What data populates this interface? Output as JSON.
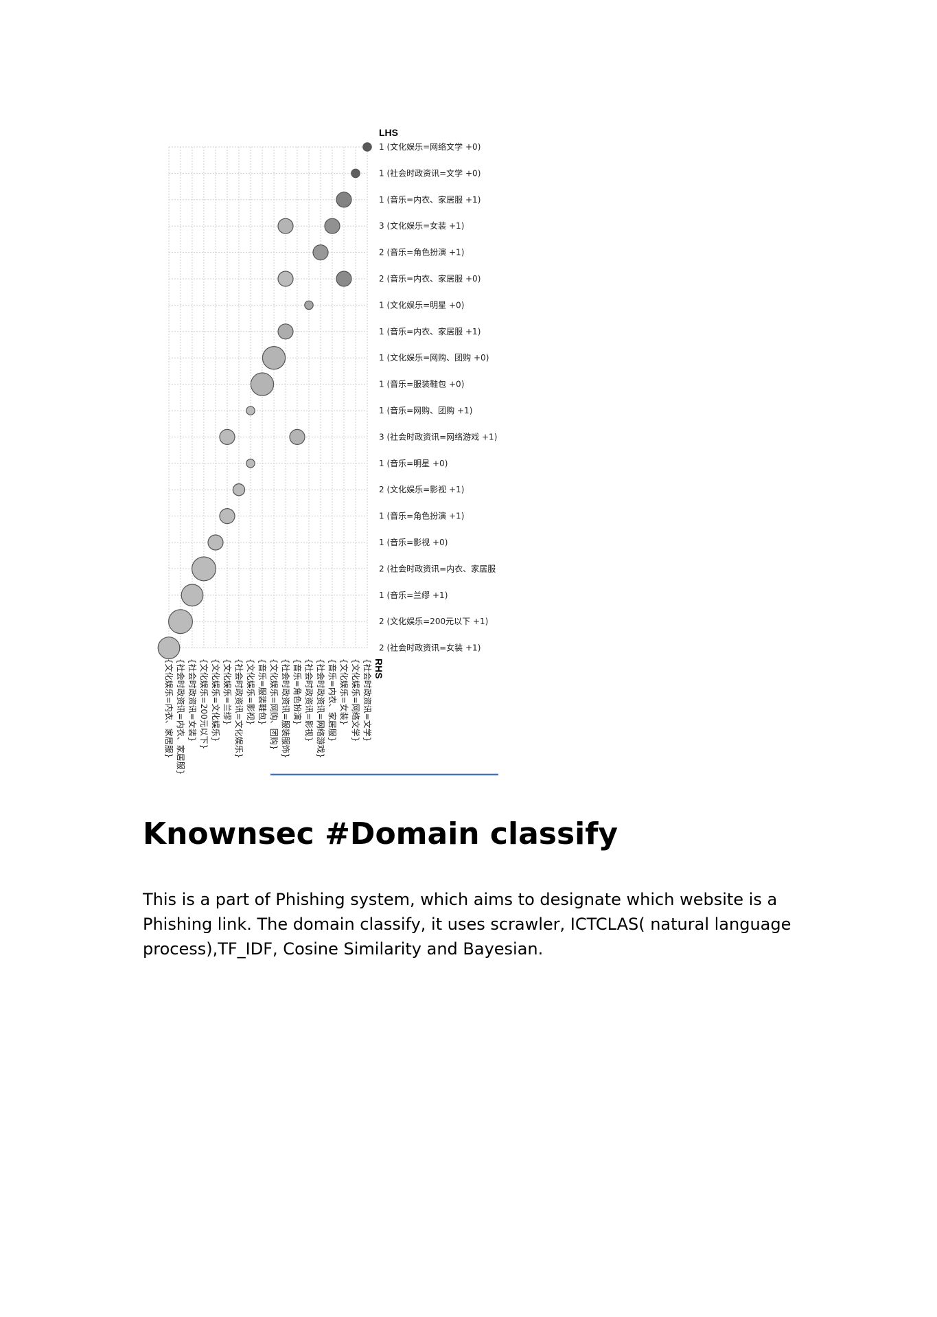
{
  "chart_data": {
    "type": "scatter",
    "title": "",
    "lhs_label": "LHS",
    "rhs_label": "RHS",
    "lhs": [
      "1 (文化娱乐=网络文学 +0)",
      "1 (社会时政资讯=文学 +0)",
      "1 (音乐=内衣、家居服 +1)",
      "3 (文化娱乐=女装 +1)",
      "2 (音乐=角色扮演 +1)",
      "2 (音乐=内衣、家居服 +0)",
      "1 (文化娱乐=明星 +0)",
      "1 (音乐=内衣、家居服 +1)",
      "1 (文化娱乐=网购、团购 +0)",
      "1 (音乐=服装鞋包 +0)",
      "1 (音乐=网购、团购 +1)",
      "3 (社会时政资讯=网络游戏 +1)",
      "1 (音乐=明星 +0)",
      "2 (文化娱乐=影视 +1)",
      "1 (音乐=角色扮演 +1)",
      "1 (音乐=影视 +0)",
      "2 (社会时政资讯=内衣、家居服",
      "1 (音乐=兰缪 +1)",
      "2 (文化娱乐=200元以下 +1)",
      "2 (社会时政资讯=女装 +1)"
    ],
    "rhs": [
      "{社会时政资讯=文学}",
      "{文化娱乐=网络文学}",
      "{文化娱乐=女装}",
      "{音乐=内衣、家居服}",
      "{社会时政资讯=网络游戏}",
      "{社会时政资讯=影视}",
      "{音乐=角色扮演}",
      "{社会时政资讯=服装服饰}",
      "{文化娱乐=网购、团购}",
      "{音乐=服装鞋包}",
      "{文化娱乐=影视}",
      "{社会时政资讯=文化娱乐}",
      "{文化娱乐=兰缪}",
      "{文化娱乐=文化娱乐}",
      "{文化娱乐=200元以下}",
      "{社会时政资讯=女装}",
      "{社会时政资讯=内衣、家居服}",
      "{文化娱乐=内衣、家居服}"
    ],
    "points": [
      {
        "lhs": 0,
        "rhs": 0,
        "size": 0.2,
        "shade": 0.9
      },
      {
        "lhs": 1,
        "rhs": 1,
        "size": 0.2,
        "shade": 0.85
      },
      {
        "lhs": 2,
        "rhs": 2,
        "size": 0.5,
        "shade": 0.6
      },
      {
        "lhs": 3,
        "rhs": 3,
        "size": 0.5,
        "shade": 0.5
      },
      {
        "lhs": 3,
        "rhs": 7,
        "size": 0.5,
        "shade": 0.25
      },
      {
        "lhs": 4,
        "rhs": 4,
        "size": 0.5,
        "shade": 0.45
      },
      {
        "lhs": 5,
        "rhs": 2,
        "size": 0.5,
        "shade": 0.55
      },
      {
        "lhs": 5,
        "rhs": 7,
        "size": 0.5,
        "shade": 0.2
      },
      {
        "lhs": 6,
        "rhs": 5,
        "size": 0.2,
        "shade": 0.35
      },
      {
        "lhs": 7,
        "rhs": 7,
        "size": 0.5,
        "shade": 0.3
      },
      {
        "lhs": 8,
        "rhs": 8,
        "size": 0.85,
        "shade": 0.25
      },
      {
        "lhs": 9,
        "rhs": 9,
        "size": 0.85,
        "shade": 0.25
      },
      {
        "lhs": 10,
        "rhs": 10,
        "size": 0.2,
        "shade": 0.2
      },
      {
        "lhs": 11,
        "rhs": 6,
        "size": 0.5,
        "shade": 0.25
      },
      {
        "lhs": 11,
        "rhs": 12,
        "size": 0.5,
        "shade": 0.2
      },
      {
        "lhs": 12,
        "rhs": 10,
        "size": 0.2,
        "shade": 0.2
      },
      {
        "lhs": 13,
        "rhs": 11,
        "size": 0.35,
        "shade": 0.2
      },
      {
        "lhs": 14,
        "rhs": 12,
        "size": 0.5,
        "shade": 0.2
      },
      {
        "lhs": 15,
        "rhs": 13,
        "size": 0.5,
        "shade": 0.2
      },
      {
        "lhs": 16,
        "rhs": 14,
        "size": 0.9,
        "shade": 0.2
      },
      {
        "lhs": 17,
        "rhs": 15,
        "size": 0.8,
        "shade": 0.2
      },
      {
        "lhs": 18,
        "rhs": 16,
        "size": 0.9,
        "shade": 0.2
      },
      {
        "lhs": 19,
        "rhs": 17,
        "size": 0.8,
        "shade": 0.2
      }
    ],
    "grid": true
  },
  "section": {
    "heading": "Knownsec #Domain classify",
    "body": "This is a part of Phishing system, which aims to designate which website is a Phishing link. The domain classify, it uses scrawler, ICTCLAS( natural language process),TF_IDF, Cosine Similarity and Bayesian."
  }
}
